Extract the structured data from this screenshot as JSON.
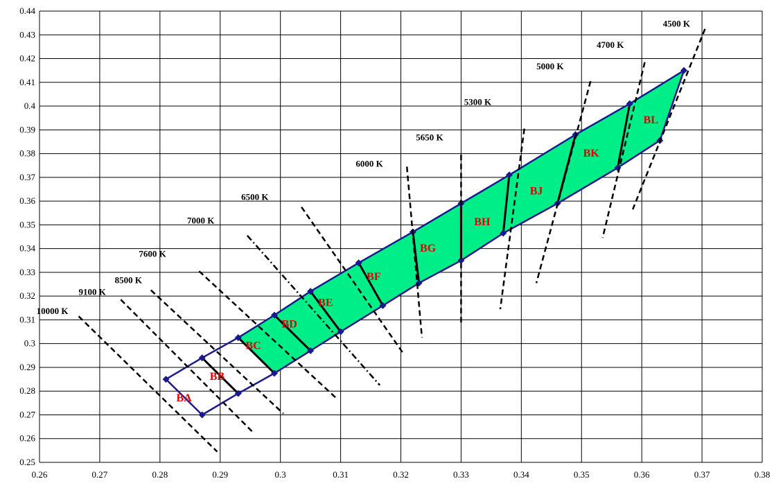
{
  "chart_data": {
    "type": "scatter",
    "title": "",
    "xlabel": "",
    "ylabel": "",
    "xlim": [
      0.26,
      0.38
    ],
    "ylim": [
      0.25,
      0.44
    ],
    "grid": true,
    "x_ticks": [
      "0.26",
      "0.27",
      "0.28",
      "0.29",
      "0.3",
      "0.31",
      "0.32",
      "0.33",
      "0.34",
      "0.35",
      "0.36",
      "0.37",
      "0.38"
    ],
    "y_ticks": [
      "0.25",
      "0.26",
      "0.27",
      "0.28",
      "0.29",
      "0.3",
      "0.31",
      "0.32",
      "0.33",
      "0.34",
      "0.35",
      "0.36",
      "0.37",
      "0.38",
      "0.39",
      "0.4",
      "0.41",
      "0.42",
      "0.43",
      "0.44"
    ],
    "colors": {
      "fill": "#00ee88",
      "boundary": "#1a1a8c",
      "bin_label": "#e00000",
      "grid": "#000000"
    },
    "upper_edge": [
      [
        0.281,
        0.285
      ],
      [
        0.287,
        0.294
      ],
      [
        0.293,
        0.3025
      ],
      [
        0.299,
        0.312
      ],
      [
        0.305,
        0.322
      ],
      [
        0.313,
        0.334
      ],
      [
        0.322,
        0.347
      ],
      [
        0.33,
        0.359
      ],
      [
        0.338,
        0.371
      ],
      [
        0.349,
        0.388
      ],
      [
        0.358,
        0.401
      ],
      [
        0.367,
        0.415
      ]
    ],
    "lower_edge": [
      [
        0.287,
        0.27
      ],
      [
        0.293,
        0.279
      ],
      [
        0.299,
        0.2875
      ],
      [
        0.305,
        0.297
      ],
      [
        0.31,
        0.305
      ],
      [
        0.317,
        0.316
      ],
      [
        0.323,
        0.3255
      ],
      [
        0.33,
        0.335
      ],
      [
        0.337,
        0.3465
      ],
      [
        0.346,
        0.359
      ],
      [
        0.356,
        0.374
      ],
      [
        0.363,
        0.3855
      ]
    ],
    "shaded_from_index": 2,
    "bins": [
      {
        "label": "BA",
        "x": 0.284,
        "y": 0.2775
      },
      {
        "label": "BB",
        "x": 0.2895,
        "y": 0.2865
      },
      {
        "label": "BC",
        "x": 0.2955,
        "y": 0.2995
      },
      {
        "label": "BD",
        "x": 0.3015,
        "y": 0.3085
      },
      {
        "label": "BE",
        "x": 0.3075,
        "y": 0.3175
      },
      {
        "label": "BF",
        "x": 0.3155,
        "y": 0.3285
      },
      {
        "label": "BG",
        "x": 0.3245,
        "y": 0.3405
      },
      {
        "label": "BH",
        "x": 0.3335,
        "y": 0.3515
      },
      {
        "label": "BJ",
        "x": 0.3425,
        "y": 0.3645
      },
      {
        "label": "BK",
        "x": 0.3516,
        "y": 0.3805
      },
      {
        "label": "BL",
        "x": 0.3615,
        "y": 0.3945
      }
    ],
    "cct_lines": [
      {
        "label": "10000 K",
        "from": [
          0.2665,
          0.3115
        ],
        "to": [
          0.2895,
          0.2545
        ],
        "label_at": [
          0.2595,
          0.3125
        ]
      },
      {
        "label": "9100 K",
        "from": [
          0.2735,
          0.3185
        ],
        "to": [
          0.2955,
          0.2625
        ],
        "label_at": [
          0.2665,
          0.3205
        ]
      },
      {
        "label": "8500 K",
        "from": [
          0.2785,
          0.3225
        ],
        "to": [
          0.3005,
          0.2705
        ],
        "label_at": [
          0.2725,
          0.3255
        ]
      },
      {
        "label": "7600 K",
        "from": [
          0.2865,
          0.3305
        ],
        "to": [
          0.3095,
          0.2765
        ],
        "label_at": [
          0.2765,
          0.3365
        ]
      },
      {
        "label": "7000 K",
        "from": [
          0.2945,
          0.3455
        ],
        "to": [
          0.3165,
          0.2825
        ],
        "label_at": [
          0.2845,
          0.3505
        ]
      },
      {
        "label": "6500 K",
        "from": [
          0.3035,
          0.3575
        ],
        "to": [
          0.3205,
          0.2955
        ],
        "label_at": [
          0.2935,
          0.3605
        ]
      },
      {
        "label": "6000 K",
        "from": [
          0.321,
          0.3745
        ],
        "to": [
          0.3235,
          0.3025
        ],
        "label_at": [
          0.3125,
          0.3745
        ]
      },
      {
        "label": "5650 K",
        "from": [
          0.33,
          0.3795
        ],
        "to": [
          0.33,
          0.3085
        ],
        "label_at": [
          0.3225,
          0.3855
        ]
      },
      {
        "label": "5300 K",
        "from": [
          0.3405,
          0.3905
        ],
        "to": [
          0.3365,
          0.3145
        ],
        "label_at": [
          0.3305,
          0.4005
        ]
      },
      {
        "label": "5000 K",
        "from": [
          0.3515,
          0.4105
        ],
        "to": [
          0.3425,
          0.3255
        ],
        "label_at": [
          0.3425,
          0.4155
        ]
      },
      {
        "label": "4700 K",
        "from": [
          0.3605,
          0.4185
        ],
        "to": [
          0.3535,
          0.3445
        ],
        "label_at": [
          0.3525,
          0.4245
        ]
      },
      {
        "label": "4500 K",
        "from": [
          0.3705,
          0.4325
        ],
        "to": [
          0.3585,
          0.3565
        ],
        "label_at": [
          0.3635,
          0.4335
        ]
      }
    ]
  }
}
